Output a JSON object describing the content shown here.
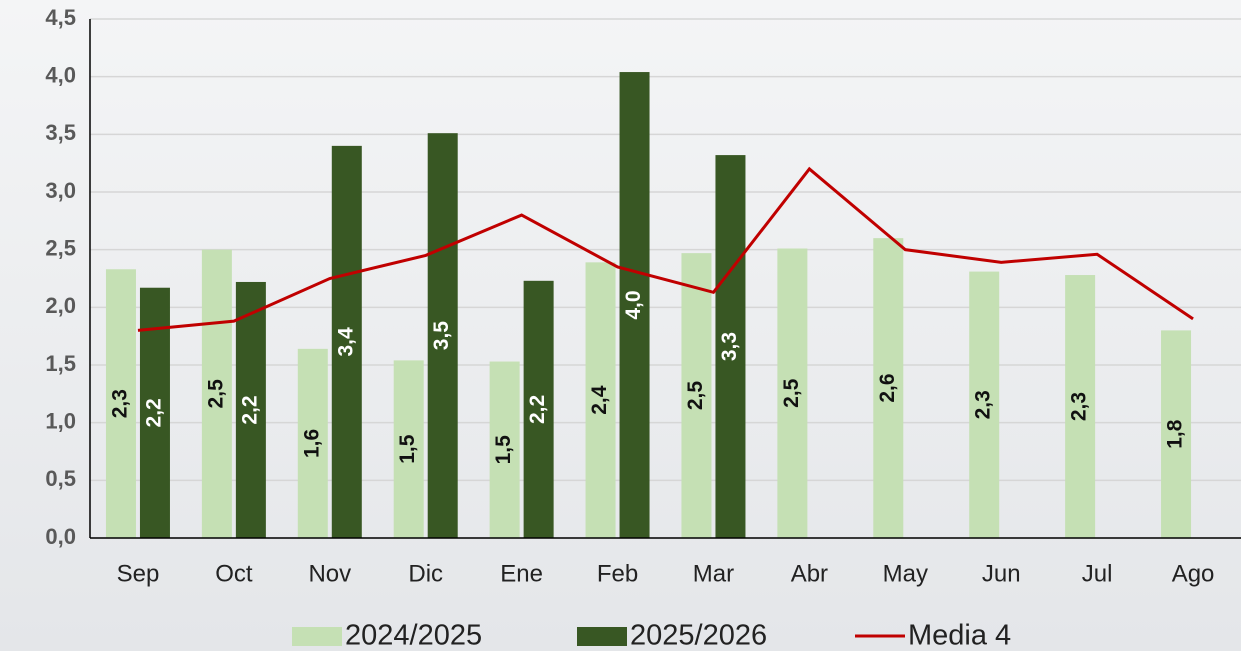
{
  "chart_data": {
    "type": "bar",
    "categories": [
      "Sep",
      "Oct",
      "Nov",
      "Dic",
      "Ene",
      "Feb",
      "Mar",
      "Abr",
      "May",
      "Jun",
      "Jul",
      "Ago"
    ],
    "series": [
      {
        "name": "2024/2025",
        "color": "#c5e0b4",
        "values": [
          2.33,
          2.5,
          1.64,
          1.54,
          1.53,
          2.39,
          2.47,
          2.51,
          2.6,
          2.31,
          2.28,
          1.8
        ],
        "value_labels": [
          "2,3",
          "2,5",
          "1,6",
          "1,5",
          "1,5",
          "2,4",
          "2,5",
          "2,5",
          "2,6",
          "2,3",
          "2,3",
          "1,8"
        ]
      },
      {
        "name": "2025/2026",
        "color": "#385723",
        "values": [
          2.17,
          2.22,
          3.4,
          3.51,
          2.23,
          4.04,
          3.32,
          null,
          null,
          null,
          null,
          null
        ],
        "value_labels": [
          "2,2",
          "2,2",
          "3,4",
          "3,5",
          "2,2",
          "4,0",
          "3,3",
          null,
          null,
          null,
          null,
          null
        ]
      },
      {
        "name": "Media 4",
        "type": "line",
        "color": "#c00000",
        "values": [
          1.8,
          1.88,
          2.25,
          2.45,
          2.8,
          2.35,
          2.13,
          3.2,
          2.5,
          2.39,
          2.46,
          1.9
        ]
      }
    ],
    "ylim": [
      0,
      4.5
    ],
    "yticks": [
      {
        "value": 0,
        "label": "0,0"
      },
      {
        "value": 0.5,
        "label": "0,5"
      },
      {
        "value": 1,
        "label": "1,0"
      },
      {
        "value": 1.5,
        "label": "1,5"
      },
      {
        "value": 2,
        "label": "2,0"
      },
      {
        "value": 2.5,
        "label": "2,5"
      },
      {
        "value": 3,
        "label": "3,0"
      },
      {
        "value": 3.5,
        "label": "3,5"
      },
      {
        "value": 4,
        "label": "4,0"
      },
      {
        "value": 4.5,
        "label": "4,5"
      }
    ],
    "grid": true,
    "legend": "bottom"
  }
}
